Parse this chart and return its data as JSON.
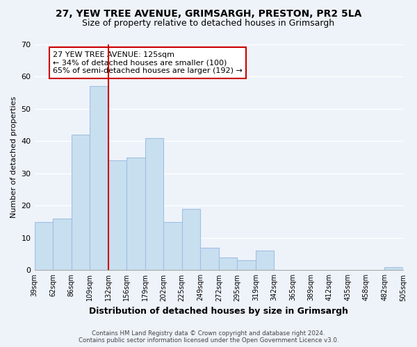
{
  "title_line1": "27, YEW TREE AVENUE, GRIMSARGH, PRESTON, PR2 5LA",
  "title_line2": "Size of property relative to detached houses in Grimsargh",
  "xlabel": "Distribution of detached houses by size in Grimsargh",
  "ylabel": "Number of detached properties",
  "bin_labels": [
    "39sqm",
    "62sqm",
    "86sqm",
    "109sqm",
    "132sqm",
    "156sqm",
    "179sqm",
    "202sqm",
    "225sqm",
    "249sqm",
    "272sqm",
    "295sqm",
    "319sqm",
    "342sqm",
    "365sqm",
    "389sqm",
    "412sqm",
    "435sqm",
    "458sqm",
    "482sqm",
    "505sqm"
  ],
  "bar_values": [
    15,
    16,
    42,
    57,
    34,
    35,
    41,
    15,
    19,
    7,
    4,
    3,
    6,
    0,
    0,
    0,
    0,
    0,
    0,
    1
  ],
  "bar_color": "#c8dff0",
  "bar_edge_color": "#a0c0e0",
  "vline_x": 4,
  "vline_color": "#cc0000",
  "ylim": [
    0,
    70
  ],
  "yticks": [
    0,
    10,
    20,
    30,
    40,
    50,
    60,
    70
  ],
  "annotation_title": "27 YEW TREE AVENUE: 125sqm",
  "annotation_line1": "← 34% of detached houses are smaller (100)",
  "annotation_line2": "65% of semi-detached houses are larger (192) →",
  "annotation_box_color": "#ffffff",
  "annotation_box_edge": "#cc0000",
  "footer_line1": "Contains HM Land Registry data © Crown copyright and database right 2024.",
  "footer_line2": "Contains public sector information licensed under the Open Government Licence v3.0.",
  "background_color": "#eef3fa"
}
